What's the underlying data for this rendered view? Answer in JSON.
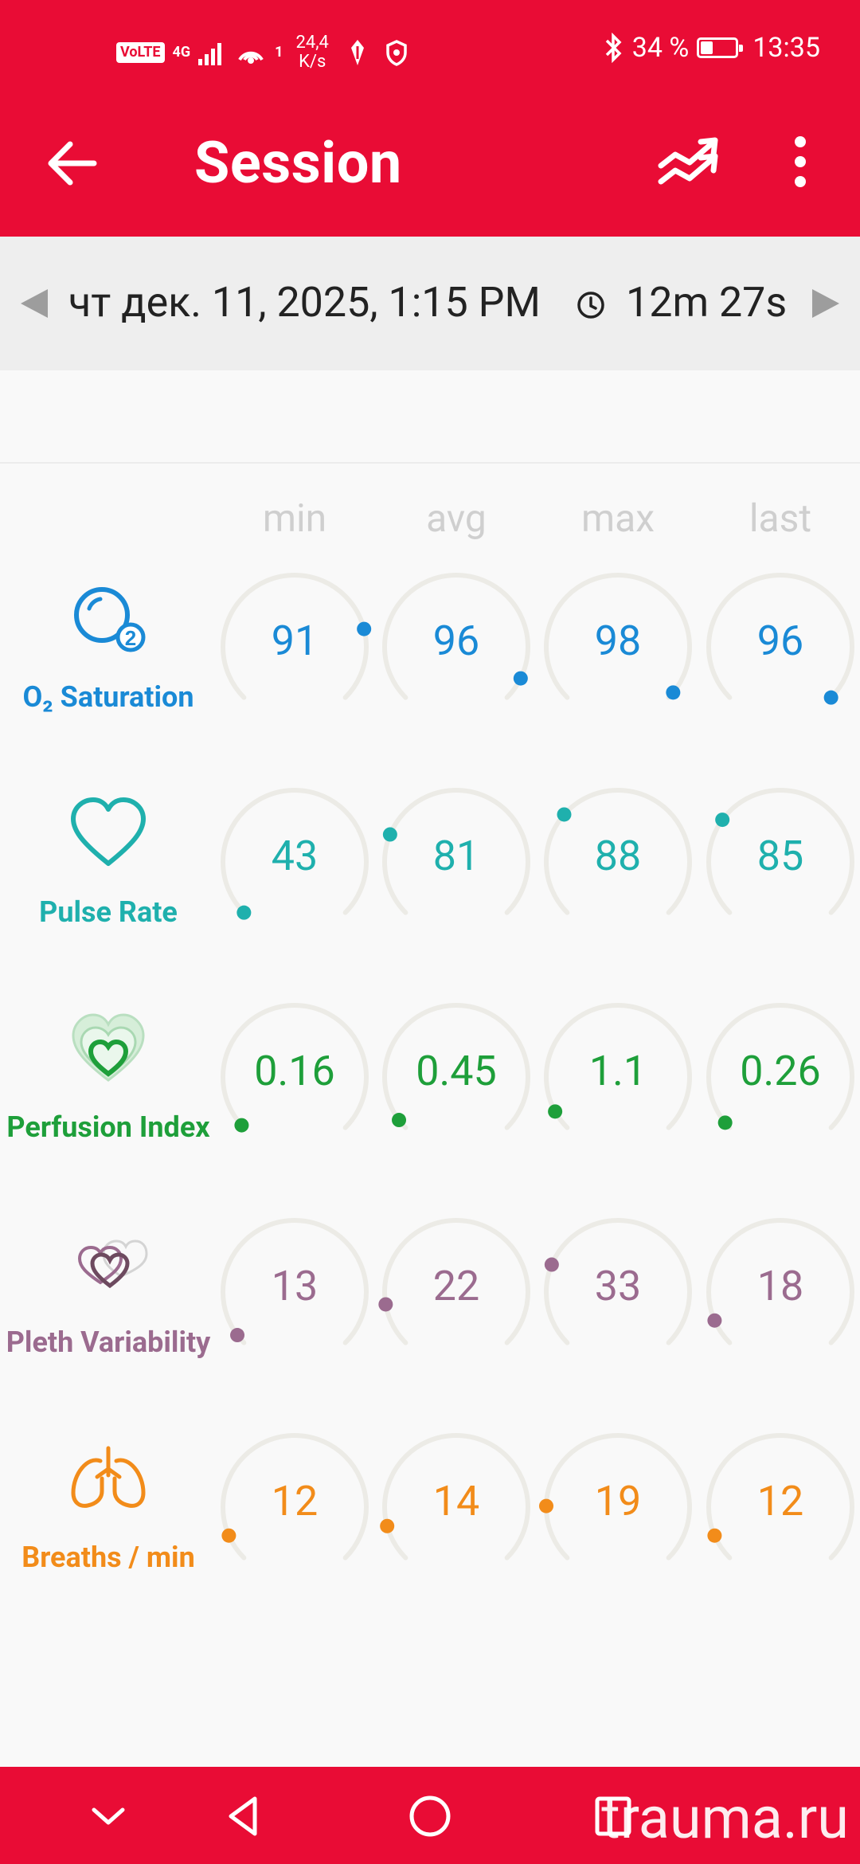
{
  "status_bar": {
    "left_badge": "VoLTE",
    "network": "4G",
    "hotspot_count": "1",
    "speed_value": "24,4",
    "speed_unit": "K/s",
    "battery_percent": "34 %",
    "battery_level": 0.34,
    "time": "13:35"
  },
  "appbar": {
    "title": "Session",
    "color": "#e90c35"
  },
  "session": {
    "date": "чт дек. 11, 2025, 1:15 PM",
    "duration": "12m 27s"
  },
  "columns": [
    "min",
    "avg",
    "max",
    "last"
  ],
  "metrics": [
    {
      "label": "O₂ Saturation",
      "color": "#1a8ad6",
      "icon": "o2-saturation-icon",
      "values": [
        "91",
        "96",
        "98",
        "96"
      ],
      "levels": [
        0.78,
        0.93,
        0.98,
        1.0
      ]
    },
    {
      "label": "Pulse Rate",
      "color": "#1fb0ad",
      "icon": "heart-icon",
      "values": [
        "43",
        "81",
        "88",
        "85"
      ],
      "levels": [
        0.0,
        0.25,
        0.32,
        0.3
      ]
    },
    {
      "label": "Perfusion Index",
      "color": "#1e9f3a",
      "icon": "perfusion-hearts-icon",
      "values": [
        "0.16",
        "0.45",
        "1.1",
        "0.26"
      ],
      "levels": [
        0.01,
        0.03,
        0.06,
        0.02
      ]
    },
    {
      "label": "Pleth Variability",
      "color": "#9b6b8f",
      "icon": "pleth-hearts-icon",
      "values": [
        "13",
        "22",
        "33",
        "18"
      ],
      "levels": [
        0.03,
        0.13,
        0.25,
        0.08
      ]
    },
    {
      "label": "Breaths / min",
      "color": "#f28c1a",
      "icon": "lungs-icon",
      "values": [
        "12",
        "14",
        "19",
        "12"
      ],
      "levels": [
        0.08,
        0.11,
        0.17,
        0.08
      ]
    }
  ],
  "watermark": "trauma.ru"
}
